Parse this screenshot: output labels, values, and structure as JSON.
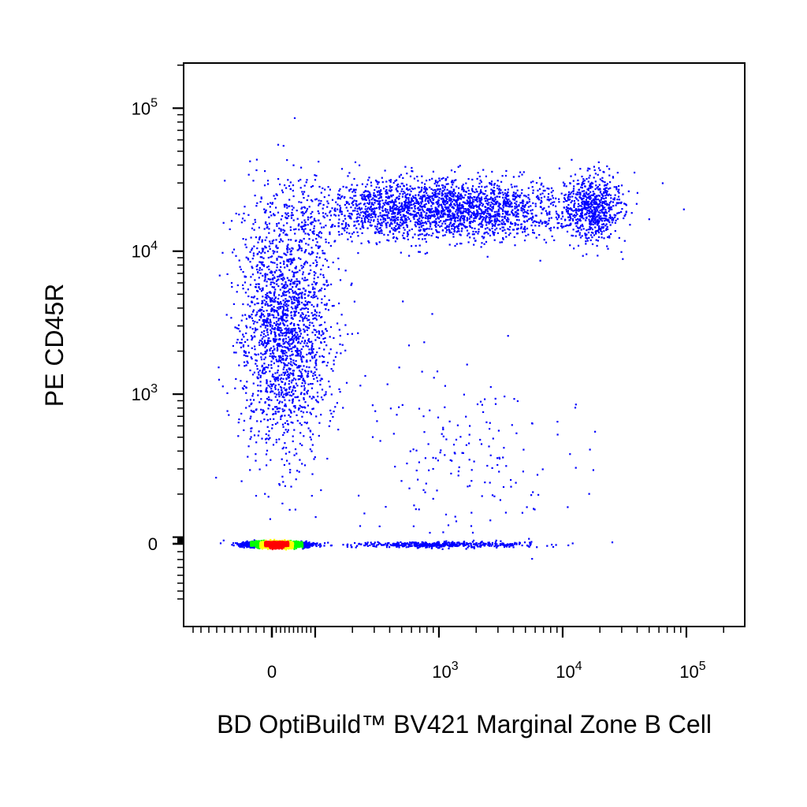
{
  "chart_data": {
    "type": "scatter",
    "subtype": "flow-cytometry-pseudocolor-dot-plot",
    "title": "",
    "xlabel": "BD OptiBuild™ BV421 Marginal Zone B Cell",
    "ylabel": "PE CD45R",
    "x_scale": "biexponential",
    "y_scale": "biexponential",
    "xlim": [
      -100,
      200000
    ],
    "ylim": [
      -70,
      220000
    ],
    "x_ticks": [
      {
        "value": 0,
        "base": "0",
        "exp": ""
      },
      {
        "value": 1000,
        "base": "10",
        "exp": "3"
      },
      {
        "value": 10000,
        "base": "10",
        "exp": "4"
      },
      {
        "value": 100000,
        "base": "10",
        "exp": "5"
      }
    ],
    "y_ticks": [
      {
        "value": 0,
        "base": "0",
        "exp": ""
      },
      {
        "value": 1000,
        "base": "10",
        "exp": "3"
      },
      {
        "value": 10000,
        "base": "10",
        "exp": "4"
      },
      {
        "value": 100000,
        "base": "10",
        "exp": "5"
      }
    ],
    "grid": false,
    "legend": "none",
    "density_colors": [
      "#0000ff",
      "#00ff00",
      "#ffff00",
      "#ff0000"
    ],
    "populations": [
      {
        "name": "",
        "x_center": 10,
        "y_center": 0,
        "x_spread": 35,
        "y_spread": 25,
        "share": 0.38,
        "density": "high"
      },
      {
        "name": "",
        "x_center": 30,
        "y_center": 3000,
        "x_spread": 60,
        "y_spread": 6000,
        "share": 0.22,
        "density": "low"
      },
      {
        "name": "",
        "x_center": 1000,
        "y_center": 20000,
        "x_spread": 3000,
        "y_spread": 6000,
        "share": 0.26,
        "density": "medium"
      },
      {
        "name": "",
        "x_center": 17000,
        "y_center": 20000,
        "x_spread": 6000,
        "y_spread": 7000,
        "share": 0.07,
        "density": "medium"
      },
      {
        "name": "",
        "x_center": 900,
        "y_center": 0,
        "x_spread": 1500,
        "y_spread": 25,
        "share": 0.05,
        "density": "low"
      },
      {
        "name": "",
        "x_center": 1500,
        "y_center": 400,
        "x_spread": 3000,
        "y_spread": 600,
        "share": 0.02,
        "density": "low"
      }
    ]
  }
}
